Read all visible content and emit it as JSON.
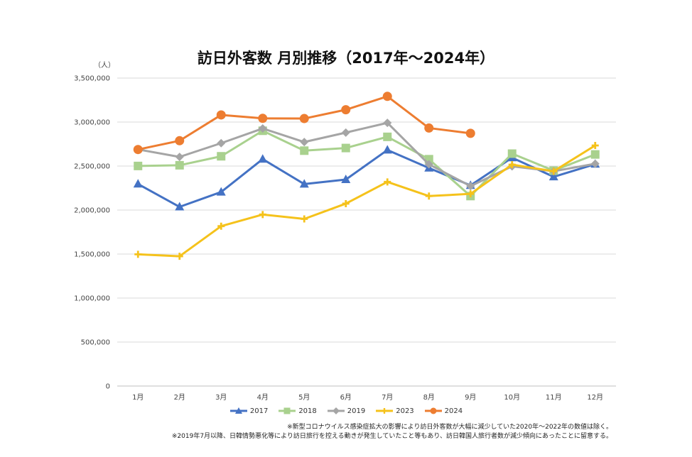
{
  "chart_data": {
    "type": "line",
    "title": "訪日外客数 月別推移（2017年～2024年）",
    "ylabel": "（人）",
    "xlabel": "",
    "categories": [
      "1月",
      "2月",
      "3月",
      "4月",
      "5月",
      "6月",
      "7月",
      "8月",
      "9月",
      "10月",
      "11月",
      "12月"
    ],
    "ylim": [
      0,
      3500000
    ],
    "yticks": [
      0,
      500000,
      1000000,
      1500000,
      2000000,
      2500000,
      3000000,
      3500000
    ],
    "ytick_labels": [
      "0",
      "500,000",
      "1,000,000",
      "1,500,000",
      "2,000,000",
      "2,500,000",
      "3,000,000",
      "3,500,000"
    ],
    "grid": true,
    "legend_position": "bottom",
    "series": [
      {
        "name": "2017",
        "color": "#4472C4",
        "marker": "triangle",
        "values": [
          2296000,
          2036000,
          2205000,
          2579000,
          2295000,
          2347000,
          2682000,
          2478000,
          2280000,
          2595000,
          2378000,
          2522000
        ]
      },
      {
        "name": "2018",
        "color": "#A9D18E",
        "marker": "square",
        "values": [
          2501000,
          2509000,
          2611000,
          2901000,
          2675000,
          2705000,
          2832000,
          2578000,
          2159000,
          2641000,
          2448000,
          2632000
        ]
      },
      {
        "name": "2019",
        "color": "#A5A5A5",
        "marker": "diamond",
        "values": [
          2689000,
          2604000,
          2760000,
          2927000,
          2773000,
          2880000,
          2991000,
          2520000,
          2272000,
          2497000,
          2441000,
          2526000
        ]
      },
      {
        "name": "2023",
        "color": "#F5C21B",
        "marker": "plus",
        "values": [
          1497000,
          1475000,
          1817000,
          1949000,
          1899000,
          2073000,
          2320000,
          2159000,
          2184000,
          2516000,
          2441000,
          2734000
        ]
      },
      {
        "name": "2024",
        "color": "#ED7D31",
        "marker": "circle",
        "values": [
          2688000,
          2788000,
          3081000,
          3042000,
          3040000,
          3140000,
          3292000,
          2932000,
          2872000,
          null,
          null,
          null
        ]
      }
    ]
  },
  "notes": [
    "※新型コロナウイルス感染症拡大の影響により訪日外客数が大幅に減少していた2020年～2022年の数値は除く。",
    "※2019年7月以降、日韓情勢悪化等により訪日旅行を控える動きが発生していたこと等もあり、訪日韓国人旅行者数が減少傾向にあったことに留意する。"
  ]
}
